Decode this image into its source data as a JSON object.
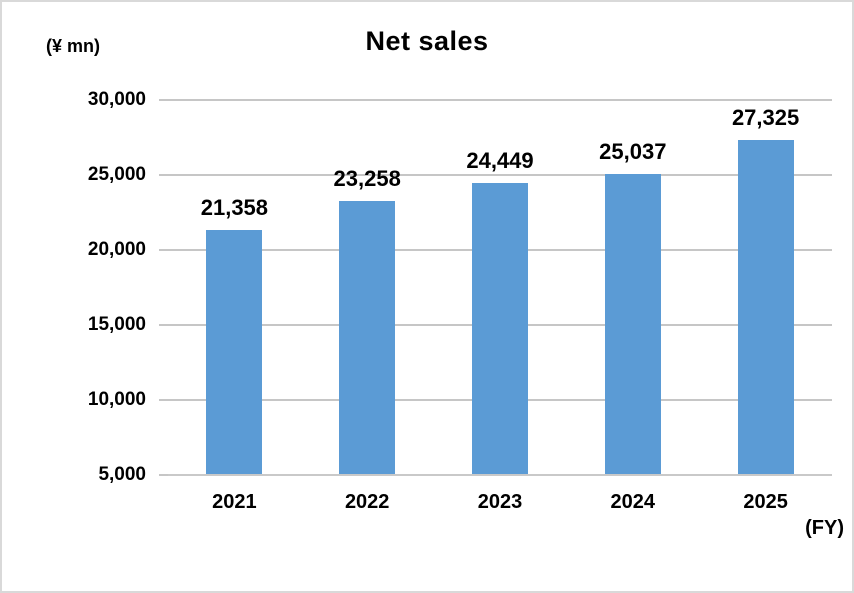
{
  "chart_data": {
    "type": "bar",
    "title": "Net sales",
    "ylabel": "(¥ mn)",
    "xlabel": "(FY)",
    "categories": [
      "2021",
      "2022",
      "2023",
      "2024",
      "2025"
    ],
    "values": [
      21358,
      23258,
      24449,
      25037,
      27325
    ],
    "value_labels": [
      "21,358",
      "23,258",
      "24,449",
      "25,037",
      "27,325"
    ],
    "ylim": [
      5000,
      30000
    ],
    "ytick_step": 5000,
    "ytick_labels": [
      "5,000",
      "10,000",
      "15,000",
      "20,000",
      "25,000",
      "30,000"
    ],
    "grid": true,
    "legend": "none",
    "bar_color": "#5B9BD5",
    "gridline_color": "#C6C6C6",
    "axis_line_color": "#C9C9C9",
    "text_color": "#000000"
  }
}
